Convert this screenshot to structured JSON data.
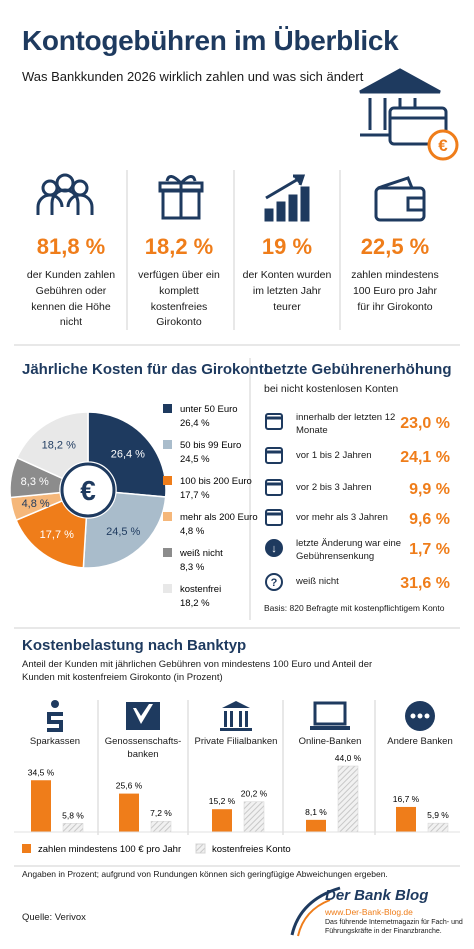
{
  "header": {
    "title": "Kontogebühren im Überblick",
    "subtitle": "Was Bankkunden 2026 wirklich zahlen und was sich ändert"
  },
  "stats": [
    {
      "value": "81,8 %",
      "text": "der Kunden zahlen Gebühren oder kennen die Höhe nicht"
    },
    {
      "value": "18,2 %",
      "text": "verfügen über ein komplett kostenfreies Girokonto"
    },
    {
      "value": "19 %",
      "text": "der Konten wurden im letzten Jahr teurer"
    },
    {
      "value": "22,5 %",
      "text": "zahlen mindestens 100 Euro pro Jahr für ihr Girokonto"
    }
  ],
  "last_increase": {
    "title": "Letzte Gebührenerhöhung",
    "subtitle": "bei nicht kostenlosen Konten",
    "rows": [
      {
        "label": "innerhalb der letzten 12 Monate",
        "value": "23,0 %"
      },
      {
        "label": "vor 1 bis 2 Jahren",
        "value": "24,1 %"
      },
      {
        "label": "vor 2 bis 3 Jahren",
        "value": "9,9 %"
      },
      {
        "label": "vor mehr als 3 Jahren",
        "value": "9,6 %"
      },
      {
        "label": "letzte Änderung war eine Gebührensenkung",
        "value": "1,7 %"
      },
      {
        "label": "weiß nicht",
        "value": "31,6 %"
      }
    ],
    "note": "Basis: 820 Befragte mit kostenpflichtigem Konto"
  },
  "chart_data": [
    {
      "type": "pie",
      "title": "Jährliche Kosten für das Girokonto",
      "categories": [
        "unter 50 Euro",
        "50 bis 99 Euro",
        "100 bis 200 Euro",
        "mehr als 200 Euro",
        "weiß nicht",
        "kostenfrei"
      ],
      "values": [
        26.4,
        24.5,
        17.7,
        4.8,
        8.3,
        18.2
      ],
      "value_labels": [
        "26,4 %",
        "24,5 %",
        "17,7 %",
        "4,8 %",
        "8,3 %",
        "18,2 %"
      ],
      "colors": [
        "#1e3a5f",
        "#a9bccb",
        "#ef7d1a",
        "#f5b77a",
        "#8c8c8c",
        "#e8e8e8"
      ]
    },
    {
      "type": "bar",
      "title": "Kostenbelastung nach Banktyp",
      "subtitle": "Anteil der Kunden mit jährlichen Gebühren von mindestens 100 Euro und Anteil der Kunden mit kostenfreiem Girokonto (in Prozent)",
      "categories": [
        "Sparkassen",
        "Genossenschafts-banken",
        "Private Filialbanken",
        "Online-Banken",
        "Andere Banken"
      ],
      "series": [
        {
          "name": "zahlen mindestens 100 € pro Jahr",
          "color": "#ef7d1a",
          "values": [
            34.5,
            25.6,
            15.2,
            8.1,
            16.7
          ],
          "value_labels": [
            "34,5 %",
            "25,6 %",
            "15,2 %",
            "8,1 %",
            "16,7 %"
          ]
        },
        {
          "name": "kostenfreies Konto",
          "color": "#d4d4d4",
          "values": [
            5.8,
            7.2,
            20.2,
            44.0,
            5.9
          ],
          "value_labels": [
            "5,8 %",
            "7,2 %",
            "20,2 %",
            "44,0 %",
            "5,9 %"
          ]
        }
      ]
    }
  ],
  "footer": {
    "note": "Angaben in Prozent; aufgrund von Rundungen können sich geringfügige Abweichungen ergeben.",
    "source": "Quelle: Verivox",
    "logo_name": "Der Bank Blog",
    "logo_url": "www.Der-Bank-Blog.de",
    "logo_tagline": "Das führende Internetmagazin für Fach- und Führungskräfte in der Finanzbranche."
  }
}
